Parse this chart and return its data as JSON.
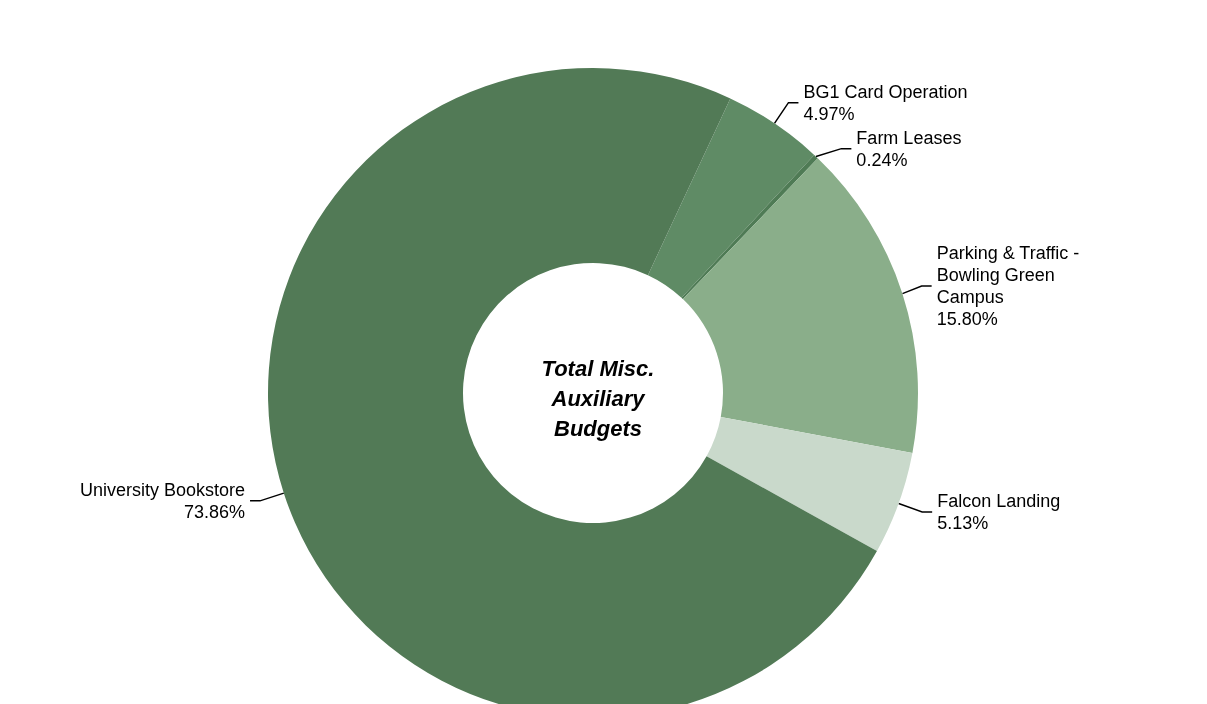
{
  "chart_data": {
    "type": "donut",
    "title": "Total Misc.\nAuxiliary\nBudgets",
    "categories": [
      "BG1 Card Operation",
      "Farm Leases",
      "Parking & Traffic - Bowling Green Campus",
      "Falcon Landing",
      "University Bookstore"
    ],
    "values": [
      4.97,
      0.24,
      15.8,
      5.13,
      73.86
    ],
    "value_labels": [
      "4.97%",
      "0.24%",
      "15.80%",
      "5.13%",
      "73.86%"
    ],
    "colors": [
      "#5f8b65",
      "#4f7b55",
      "#8aae8a",
      "#c9d9cb",
      "#527a56"
    ],
    "legend": false
  }
}
